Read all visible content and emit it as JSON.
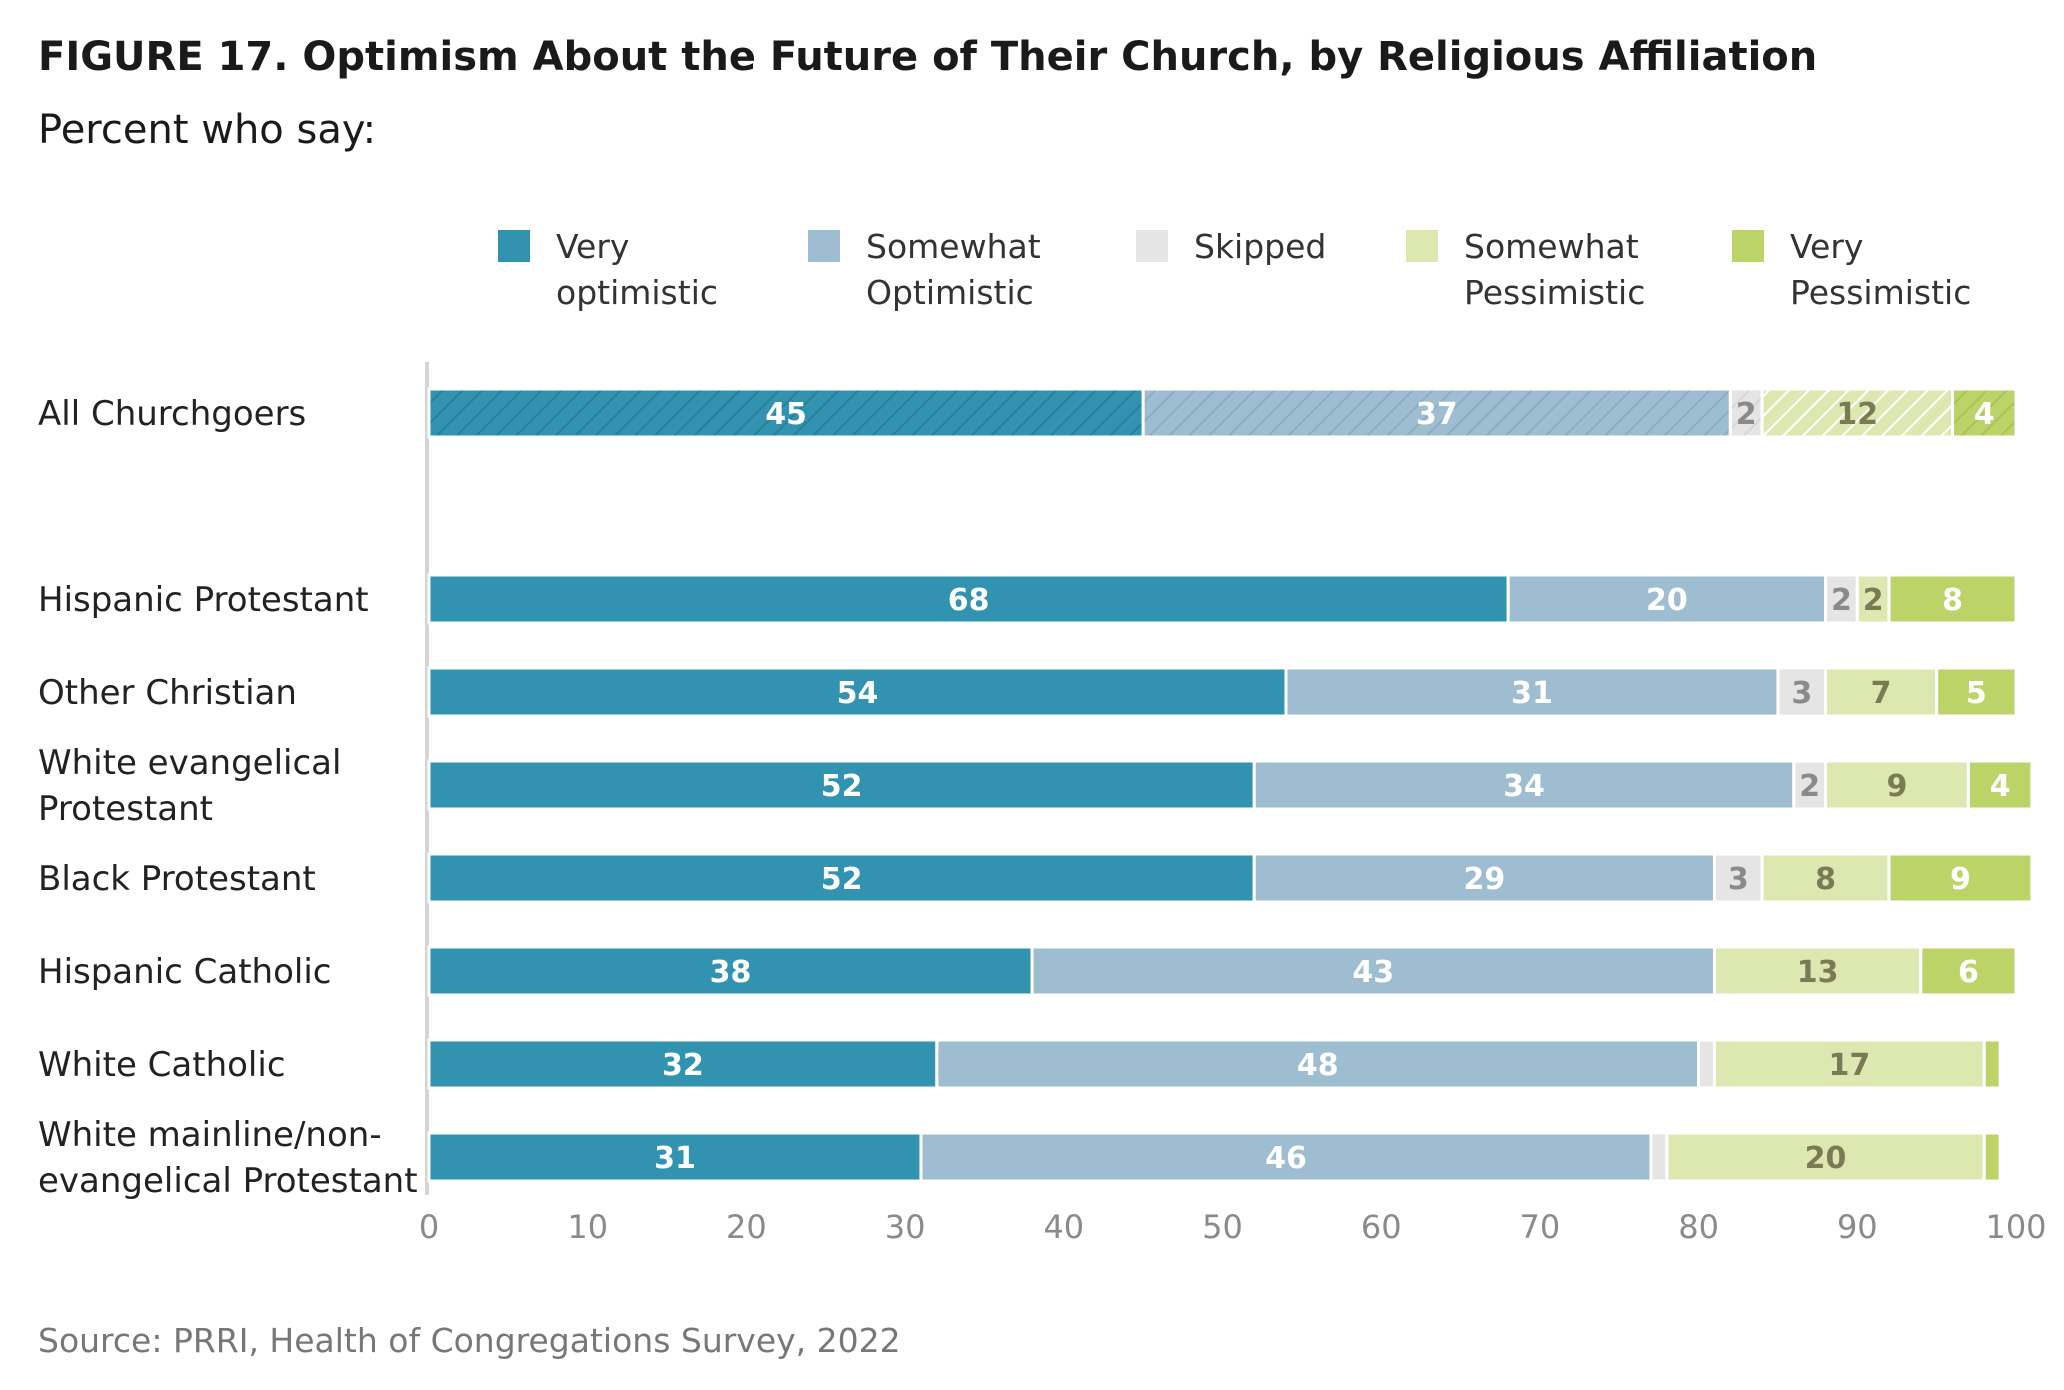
{
  "title": "FIGURE 17.  Optimism About the Future of Their Church, by Religious Affiliation",
  "subtitle": "Percent who say:",
  "source": "Source: PRRI, Health of Congregations Survey, 2022",
  "legend": [
    {
      "lines": [
        "Very",
        "optimistic"
      ],
      "color": "#3293b1"
    },
    {
      "lines": [
        "Somewhat",
        "Optimistic"
      ],
      "color": "#9ebdd0"
    },
    {
      "lines": [
        "Skipped"
      ],
      "color": "#e5e5e5"
    },
    {
      "lines": [
        "Somewhat",
        "Pessimistic"
      ],
      "color": "#dde8b1"
    },
    {
      "lines": [
        "Very",
        "Pessimistic"
      ],
      "color": "#bcd467"
    }
  ],
  "chart_data": {
    "type": "bar",
    "orientation": "horizontal",
    "stacked": true,
    "xlim": [
      0,
      100
    ],
    "xticks": [
      0,
      10,
      20,
      30,
      40,
      50,
      60,
      70,
      80,
      90,
      100
    ],
    "categories": [
      {
        "label": [
          "All Churchgoers"
        ],
        "hatched": true
      },
      {
        "label": [
          "Hispanic Protestant"
        ]
      },
      {
        "label": [
          "Other Christian"
        ]
      },
      {
        "label": [
          "White evangelical",
          "Protestant"
        ]
      },
      {
        "label": [
          "Black Protestant"
        ]
      },
      {
        "label": [
          "Hispanic Catholic"
        ]
      },
      {
        "label": [
          "White Catholic"
        ]
      },
      {
        "label": [
          "White mainline/non-",
          "evangelical Protestant"
        ]
      }
    ],
    "series": [
      {
        "name": "Very optimistic",
        "color": "#3293b1",
        "label_color": "#ffffff",
        "values": [
          45,
          68,
          54,
          52,
          52,
          38,
          32,
          31
        ]
      },
      {
        "name": "Somewhat Optimistic",
        "color": "#9ebdd0",
        "label_color": "#ffffff",
        "values": [
          37,
          20,
          31,
          34,
          29,
          43,
          48,
          46
        ]
      },
      {
        "name": "Skipped",
        "color": "#e5e5e5",
        "label_color": "#8a8a8a",
        "values": [
          2,
          2,
          3,
          2,
          3,
          0,
          1,
          1
        ]
      },
      {
        "name": "Somewhat Pessimistic",
        "color": "#dde8b1",
        "label_color": "#7a7a55",
        "values": [
          12,
          2,
          7,
          9,
          8,
          13,
          17,
          20
        ]
      },
      {
        "name": "Very Pessimistic",
        "color": "#bcd467",
        "label_color": "#ffffff",
        "values": [
          4,
          8,
          5,
          4,
          9,
          6,
          1,
          1
        ]
      }
    ],
    "value_labels": [
      [
        "45",
        "37",
        "2",
        "12",
        "4"
      ],
      [
        "68",
        "20",
        "2",
        "2",
        "8"
      ],
      [
        "54",
        "31",
        "3",
        "7",
        "5"
      ],
      [
        "52",
        "34",
        "2",
        "9",
        "4"
      ],
      [
        "52",
        "29",
        "3",
        "8",
        "9"
      ],
      [
        "38",
        "43",
        "",
        "13",
        "6"
      ],
      [
        "32",
        "48",
        "",
        "17",
        ""
      ],
      [
        "31",
        "46",
        "",
        "20",
        ""
      ]
    ]
  }
}
